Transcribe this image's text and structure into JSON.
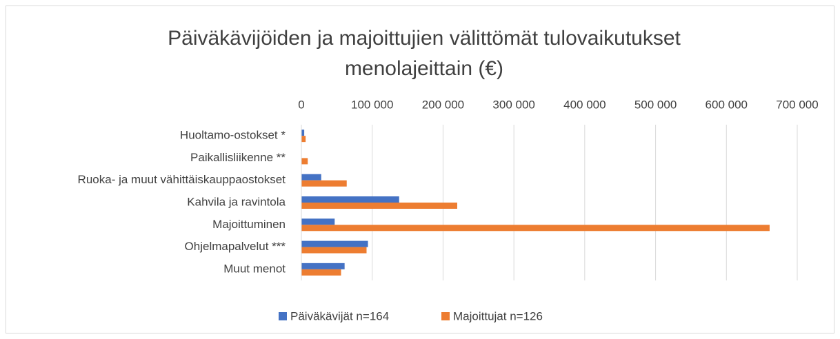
{
  "chart_data": {
    "type": "bar",
    "orientation": "horizontal",
    "title": "Päiväkävijöiden ja majoittujien välittömät tulovaikutukset menolajeittain (€)",
    "categories": [
      "Huoltamo-ostokset *",
      "Paikallisliikenne **",
      "Ruoka- ja muut vähittäiskauppaostokset",
      "Kahvila ja ravintola",
      "Majoittuminen",
      "Ohjelmapalvelut ***",
      "Muut menot"
    ],
    "series": [
      {
        "name": "Päiväkävijät n=164",
        "color": "#4472c4",
        "values": [
          4000,
          0,
          28000,
          138000,
          47000,
          94000,
          61000
        ]
      },
      {
        "name": "Majoittujat n=126",
        "color": "#ed7d31",
        "values": [
          6000,
          9000,
          64000,
          220000,
          661000,
          92000,
          56000
        ]
      }
    ],
    "xlim": [
      0,
      700000
    ],
    "xticks": [
      0,
      {
        "value": 100000,
        "label": "100 000"
      },
      {
        "value": 200000,
        "label": "200 000"
      },
      {
        "value": 300000,
        "label": "300 000"
      },
      {
        "value": 400000,
        "label": "400 000"
      },
      {
        "value": 500000,
        "label": "500 000"
      },
      {
        "value": 600000,
        "label": "600 000"
      },
      {
        "value": 700000,
        "label": "700 000"
      }
    ],
    "grid": true,
    "legend": "bottom"
  }
}
